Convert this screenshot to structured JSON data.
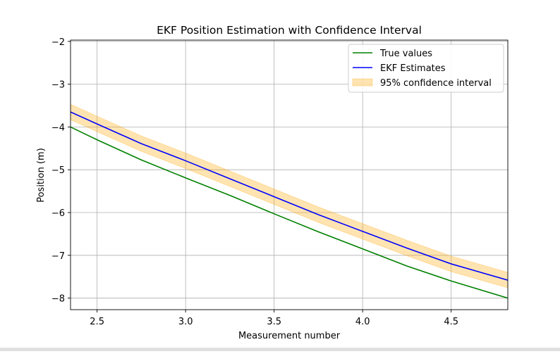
{
  "chart_data": {
    "type": "line",
    "title": "EKF Position Estimation with Confidence Interval",
    "xlabel": "Measurement number",
    "ylabel": "Position (m)",
    "xlim": [
      2.35,
      4.82
    ],
    "ylim": [
      -8.27,
      -1.97
    ],
    "xticks": [
      2.5,
      3.0,
      3.5,
      4.0,
      4.5
    ],
    "xtick_labels": [
      "2.5",
      "3.0",
      "3.5",
      "4.0",
      "4.5"
    ],
    "yticks": [
      -8,
      -7,
      -6,
      -5,
      -4,
      -3,
      -2
    ],
    "ytick_labels": [
      "−8",
      "−7",
      "−6",
      "−5",
      "−4",
      "−3",
      "−2"
    ],
    "grid": true,
    "legend_position": "top-right",
    "x": [
      2.35,
      2.5,
      2.75,
      3.0,
      3.25,
      3.5,
      3.75,
      4.0,
      4.25,
      4.5,
      4.82
    ],
    "series": [
      {
        "name": "True values",
        "color": "#008000",
        "values": [
          -4.0,
          -4.3,
          -4.77,
          -5.19,
          -5.6,
          -6.03,
          -6.45,
          -6.85,
          -7.25,
          -7.6,
          -8.0
        ]
      },
      {
        "name": "EKF Estimates",
        "color": "#0000ff",
        "values": [
          -3.65,
          -3.93,
          -4.39,
          -4.79,
          -5.21,
          -5.63,
          -6.05,
          -6.44,
          -6.83,
          -7.2,
          -7.58
        ]
      }
    ],
    "band": {
      "name": "95% confidence interval",
      "color": "#ffa500",
      "opacity": 0.3,
      "lower": [
        -3.83,
        -4.11,
        -4.57,
        -4.97,
        -5.39,
        -5.81,
        -6.23,
        -6.62,
        -7.01,
        -7.38,
        -7.76
      ],
      "upper": [
        -3.47,
        -3.75,
        -4.21,
        -4.61,
        -5.03,
        -5.45,
        -5.87,
        -6.26,
        -6.65,
        -7.02,
        -7.4
      ]
    }
  }
}
